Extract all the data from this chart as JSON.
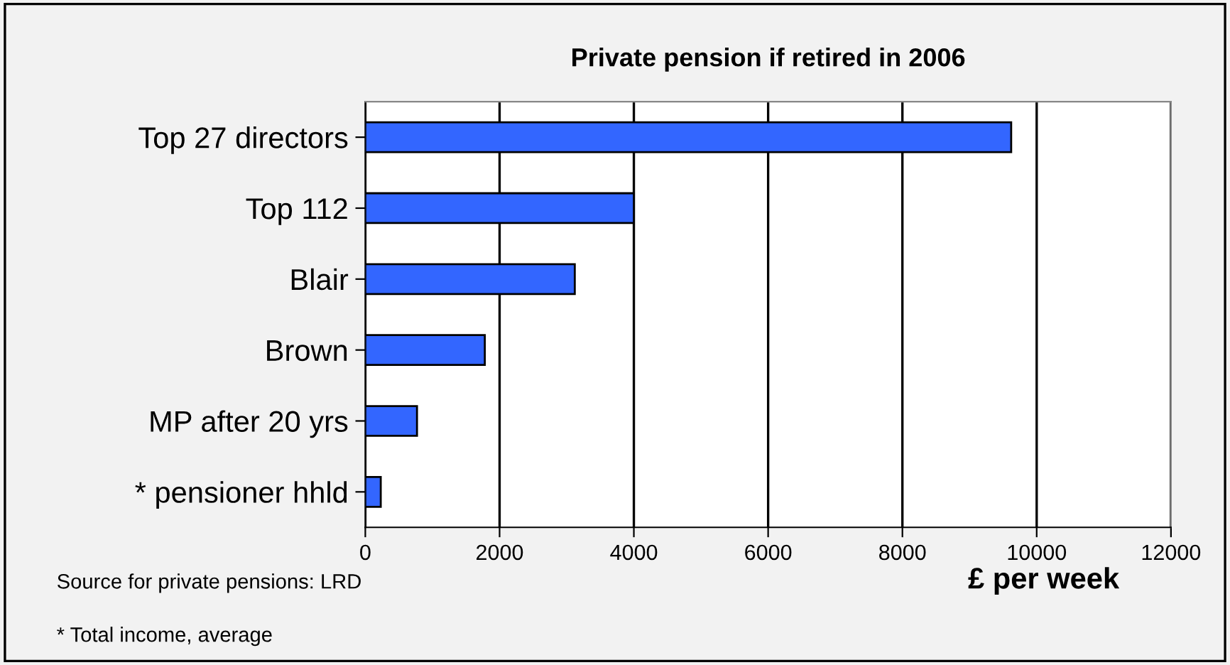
{
  "chart_data": {
    "type": "bar",
    "orientation": "horizontal",
    "title": "Private pension if retired in 2006",
    "categories": [
      "Top 27 directors",
      "Top 112",
      "Blair",
      "Brown",
      "MP after 20 yrs",
      "* pensioner hhld"
    ],
    "values": [
      9620,
      4000,
      3120,
      1780,
      770,
      230
    ],
    "color": "#3366ff",
    "xlim": [
      0,
      12000
    ],
    "xticks": [
      0,
      2000,
      4000,
      6000,
      8000,
      10000,
      12000
    ],
    "grid": "x",
    "xlabel": "£ per week",
    "annotations": [
      "Source for private pensions: LRD",
      "* Total income, average"
    ]
  }
}
